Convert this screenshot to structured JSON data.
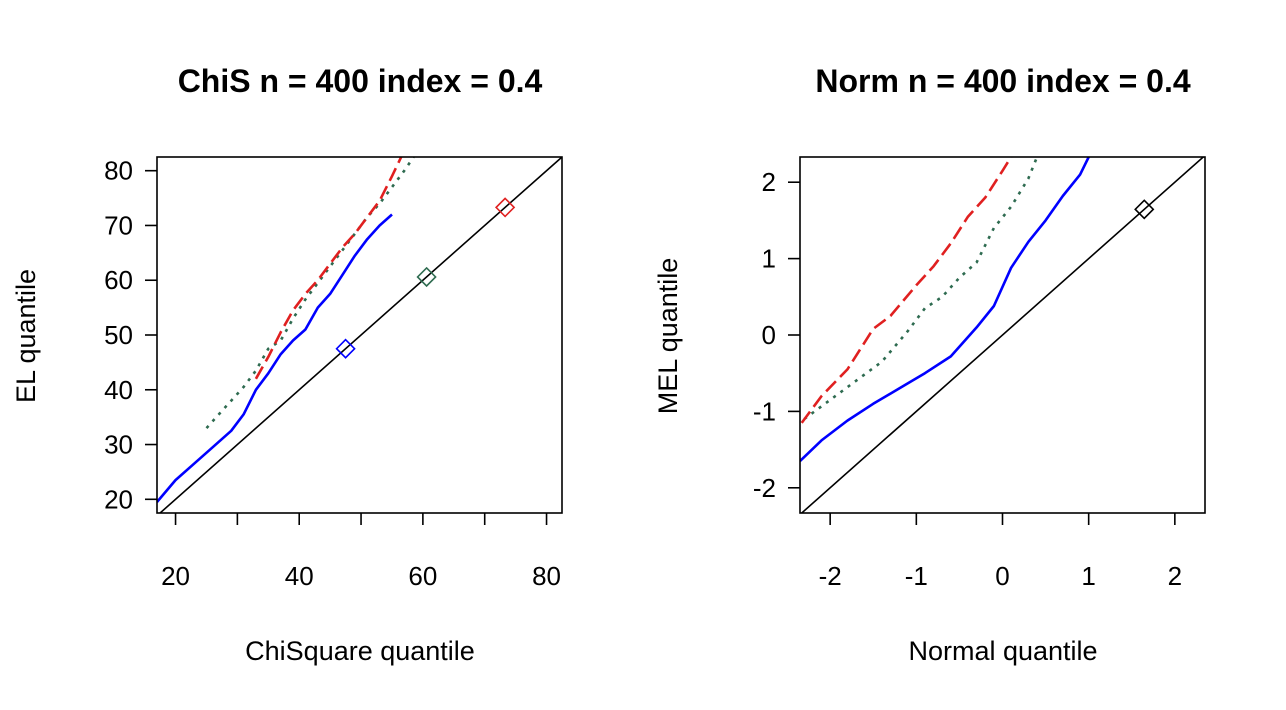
{
  "chart_data": [
    {
      "type": "line",
      "title": "ChiS n = 400 index = 0.4",
      "xlabel": "ChiSquare quantile",
      "ylabel": "EL quantile",
      "xlim": [
        17,
        82.5
      ],
      "ylim": [
        17.5,
        82.5
      ],
      "xticks": [
        20,
        30,
        40,
        50,
        60,
        70,
        80
      ],
      "xtick_labels": [
        "20",
        "",
        "40",
        "",
        "60",
        "",
        "80"
      ],
      "yticks": [
        20,
        30,
        40,
        50,
        60,
        70,
        80
      ],
      "ytick_labels": [
        "20",
        "30",
        "40",
        "50",
        "60",
        "70",
        "80"
      ],
      "reference_line": {
        "slope": 1,
        "intercept": 0,
        "color": "#000000"
      },
      "series": [
        {
          "color": "#0000ff",
          "style": "solid",
          "x": [
            17,
            20,
            23,
            26,
            29,
            31,
            33,
            35,
            37,
            39,
            41,
            43,
            45,
            47,
            49,
            51,
            53,
            55
          ],
          "y": [
            19.5,
            23.5,
            26.5,
            29.5,
            32.5,
            35.5,
            40,
            43,
            46.5,
            49,
            51,
            55,
            57.5,
            61,
            64.5,
            67.5,
            70,
            72
          ]
        },
        {
          "color": "#2e6b50",
          "style": "dotted",
          "x": [
            25,
            27,
            29,
            31,
            33,
            35,
            37,
            39,
            41,
            43,
            45,
            47,
            49,
            51,
            53,
            55,
            57,
            58.5
          ],
          "y": [
            33,
            35.5,
            38,
            40.5,
            43.5,
            47.5,
            49,
            53,
            56.5,
            59.5,
            62.5,
            65.5,
            68.5,
            71.5,
            74,
            77,
            80,
            82.5
          ]
        },
        {
          "color": "#e02020",
          "style": "dashed",
          "x": [
            33,
            35,
            37,
            39,
            41,
            43,
            45,
            47,
            49,
            51,
            53,
            55,
            56.5
          ],
          "y": [
            42,
            46,
            50.5,
            54.5,
            57.5,
            60,
            63,
            66,
            68.5,
            71.5,
            74.5,
            79,
            82.5
          ]
        }
      ],
      "markers": [
        {
          "shape": "diamond",
          "color": "#0000ff",
          "x": 47.5,
          "y": 47.5
        },
        {
          "shape": "diamond",
          "color": "#2e6b50",
          "x": 60.6,
          "y": 60.6
        },
        {
          "shape": "diamond",
          "color": "#e02020",
          "x": 73.3,
          "y": 73.3
        }
      ]
    },
    {
      "type": "line",
      "title": "Norm n = 400 index = 0.4",
      "xlabel": "Normal quantile",
      "ylabel": "MEL quantile",
      "xlim": [
        -2.35,
        2.35
      ],
      "ylim": [
        -2.33,
        2.33
      ],
      "xticks": [
        -2,
        -1,
        0,
        1,
        2
      ],
      "xtick_labels": [
        "-2",
        "-1",
        "0",
        "1",
        "2"
      ],
      "yticks": [
        -2,
        -1,
        0,
        1,
        2
      ],
      "ytick_labels": [
        "-2",
        "-1",
        "0",
        "1",
        "2"
      ],
      "reference_line": {
        "slope": 1,
        "intercept": 0,
        "color": "#000000"
      },
      "series": [
        {
          "color": "#0000ff",
          "style": "solid",
          "x": [
            -2.35,
            -2.1,
            -1.8,
            -1.5,
            -1.2,
            -0.9,
            -0.6,
            -0.3,
            -0.1,
            0.1,
            0.3,
            0.5,
            0.7,
            0.9,
            1.0
          ],
          "y": [
            -1.65,
            -1.38,
            -1.12,
            -0.9,
            -0.7,
            -0.5,
            -0.28,
            0.1,
            0.38,
            0.88,
            1.22,
            1.5,
            1.82,
            2.1,
            2.33
          ]
        },
        {
          "color": "#2e6b50",
          "style": "dotted",
          "x": [
            -2.3,
            -2.0,
            -1.7,
            -1.4,
            -1.1,
            -0.9,
            -0.7,
            -0.5,
            -0.3,
            -0.1,
            0.1,
            0.3,
            0.4
          ],
          "y": [
            -1.1,
            -0.85,
            -0.6,
            -0.35,
            0.05,
            0.35,
            0.5,
            0.75,
            0.95,
            1.4,
            1.68,
            2.05,
            2.33
          ]
        },
        {
          "color": "#e02020",
          "style": "dashed",
          "x": [
            -2.33,
            -2.1,
            -1.8,
            -1.5,
            -1.3,
            -1.0,
            -0.8,
            -0.6,
            -0.4,
            -0.2,
            0.0,
            0.1
          ],
          "y": [
            -1.15,
            -0.8,
            -0.45,
            0.08,
            0.25,
            0.65,
            0.9,
            1.2,
            1.55,
            1.8,
            2.15,
            2.33
          ]
        }
      ],
      "markers": [
        {
          "shape": "diamond",
          "color": "#000000",
          "x": 1.645,
          "y": 1.645
        }
      ]
    }
  ]
}
